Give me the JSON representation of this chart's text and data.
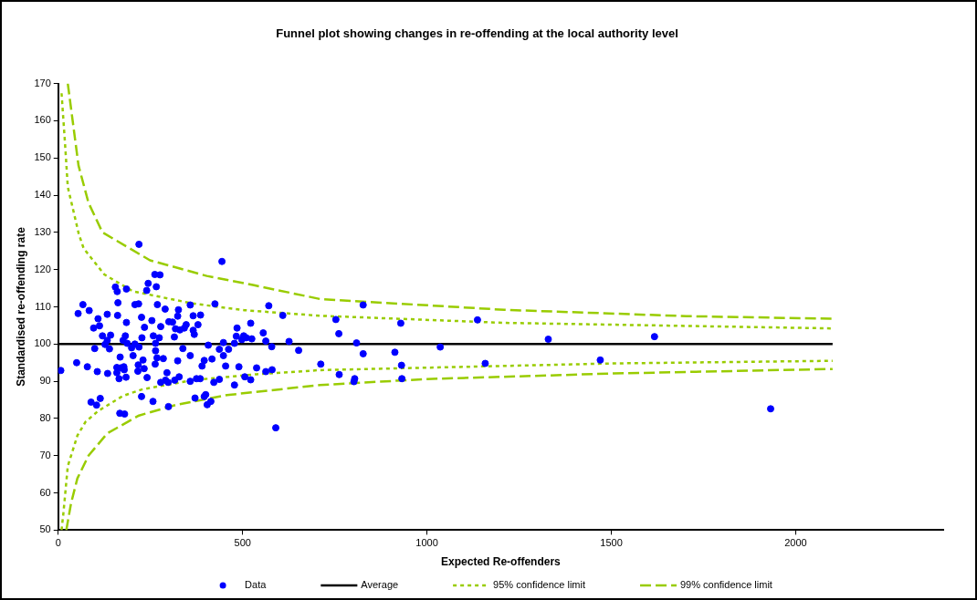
{
  "chart_data": {
    "type": "scatter",
    "title": "Funnel plot showing changes in re-offending at the local authority level",
    "xlabel": "Expected Re-offenders",
    "ylabel": "Standardised re-offending rate",
    "xlim": [
      0,
      2400
    ],
    "xticks": [
      0,
      500,
      1000,
      1500,
      2000
    ],
    "ylim": [
      50,
      170
    ],
    "yticks": [
      50,
      60,
      70,
      80,
      90,
      100,
      110,
      120,
      130,
      140,
      150,
      160,
      170
    ],
    "grid": false,
    "legend": "bottom",
    "series": [
      {
        "name": "Data",
        "marker": "circle",
        "color": "#0000ff",
        "x": [
          7,
          219,
          444,
          262,
          276,
          244,
          266,
          240,
          155,
          160,
          185,
          162,
          67,
          54,
          84,
          108,
          96,
          112,
          133,
          161,
          185,
          208,
          218,
          226,
          234,
          254,
          269,
          290,
          278,
          300,
          310,
          326,
          324,
          358,
          366,
          386,
          379,
          425,
          318,
          330,
          342,
          347,
          366,
          369,
          315,
          485,
          483,
          120,
          142,
          133,
          127,
          139,
          99,
          182,
          176,
          187,
          199,
          208,
          219,
          227,
          258,
          274,
          264,
          264,
          203,
          168,
          268,
          285,
          338,
          358,
          324,
          407,
          437,
          448,
          462,
          448,
          478,
          454,
          490,
          417,
          396,
          390,
          358,
          375,
          385,
          422,
          437,
          478,
          50,
          79,
          106,
          134,
          159,
          169,
          178,
          179,
          159,
          165,
          184,
          217,
          230,
          216,
          233,
          241,
          263,
          295,
          278,
          291,
          298,
          316,
          328,
          89,
          104,
          114,
          226,
          257,
          299,
          371,
          396,
          400,
          404,
          414,
          167,
          180,
          571,
          609,
          522,
          503,
          510,
          525,
          498,
          556,
          563,
          579,
          626,
          652,
          538,
          563,
          580,
          506,
          522,
          590,
          712,
          753,
          761,
          809,
          827,
          762,
          804,
          802,
          827,
          929,
          913,
          931,
          932,
          1137,
          1036,
          1329,
          1617,
          1158,
          1470,
          1932
        ],
        "values": [
          92.9,
          126.8,
          122.2,
          118.7,
          118.6,
          116.3,
          115.4,
          114.4,
          115.3,
          114.1,
          114.8,
          111.1,
          110.6,
          108.2,
          109.0,
          106.8,
          104.3,
          104.9,
          108.0,
          107.7,
          105.8,
          110.6,
          110.8,
          107.2,
          104.5,
          106.3,
          110.6,
          109.4,
          104.7,
          106.0,
          105.9,
          109.2,
          107.5,
          110.5,
          107.6,
          107.8,
          105.2,
          110.8,
          104.1,
          103.8,
          104.3,
          105.2,
          103.7,
          102.6,
          101.9,
          104.3,
          102.1,
          102.2,
          102.4,
          101.0,
          99.9,
          98.7,
          98.8,
          102.2,
          101.0,
          100.2,
          99.0,
          100.0,
          99.2,
          101.7,
          102.2,
          101.7,
          100.2,
          98.2,
          96.9,
          96.5,
          96.3,
          96.1,
          98.8,
          96.9,
          95.5,
          99.7,
          98.6,
          96.9,
          98.6,
          100.4,
          100.2,
          94.1,
          93.9,
          96.0,
          95.6,
          94.1,
          90.0,
          90.7,
          90.7,
          89.7,
          90.5,
          89.0,
          95.0,
          93.9,
          92.6,
          92.1,
          93.7,
          93.6,
          93.9,
          93.1,
          92.3,
          90.7,
          91.1,
          94.4,
          95.7,
          92.7,
          93.4,
          91.0,
          94.6,
          92.3,
          89.7,
          90.3,
          89.7,
          90.3,
          91.2,
          84.4,
          83.6,
          85.4,
          85.9,
          84.6,
          83.2,
          85.5,
          85.9,
          86.4,
          83.7,
          84.6,
          81.4,
          81.2,
          110.3,
          107.7,
          105.6,
          102.2,
          101.7,
          101.4,
          101.2,
          103.0,
          100.8,
          99.3,
          100.7,
          98.3,
          93.6,
          92.6,
          93.1,
          91.2,
          90.4,
          77.5,
          94.6,
          106.6,
          102.8,
          100.3,
          97.4,
          91.8,
          90.7,
          89.9,
          110.5,
          105.6,
          97.8,
          94.3,
          90.7,
          106.5,
          99.2,
          101.3,
          102.0,
          94.8,
          95.7,
          82.6
        ]
      },
      {
        "name": "Average",
        "type": "line",
        "marker": "none",
        "line_style": "solid",
        "color": "#000000",
        "x": [
          0,
          2100
        ],
        "values": [
          100,
          100
        ]
      },
      {
        "name": "95% confidence limit",
        "type": "line",
        "marker": "none",
        "line_style": "dotted",
        "color": "#99cc00",
        "x": [
          9,
          18,
          26,
          56,
          69,
          125,
          202,
          364,
          505,
          710,
          1210,
          2100
        ],
        "values": [
          167.4,
          154.6,
          142.2,
          129.5,
          125.7,
          118.7,
          114.2,
          110.9,
          109.1,
          107.6,
          105.7,
          104.2
        ]
      },
      {
        "type": "line",
        "marker": "none",
        "line_style": "dotted",
        "color": "#99cc00",
        "x": [
          9,
          14,
          26,
          52,
          74,
          108,
          176,
          227,
          364,
          538,
          710,
          1507,
          2100
        ],
        "values": [
          50,
          54.5,
          67.2,
          75.4,
          79.1,
          82.0,
          86.1,
          87.8,
          90.3,
          91.9,
          93.0,
          94.8,
          95.5
        ]
      },
      {
        "name": "99% confidence limit",
        "type": "line",
        "marker": "none",
        "line_style": "dashed",
        "color": "#99cc00",
        "x": [
          26,
          55,
          82,
          120,
          249,
          403,
          531,
          710,
          1210,
          1704,
          2100
        ],
        "values": [
          170,
          148,
          138,
          130,
          122.5,
          118.3,
          115.8,
          112.1,
          109.2,
          107.5,
          106.8
        ]
      },
      {
        "type": "line",
        "marker": "none",
        "line_style": "dashed",
        "color": "#99cc00",
        "x": [
          22,
          35,
          52,
          82,
          133,
          219,
          321,
          458,
          710,
          1000,
          1507,
          2100
        ],
        "values": [
          50,
          57.3,
          63.9,
          70,
          76,
          80.8,
          83.7,
          86.3,
          89,
          90.6,
          92.1,
          93.3
        ]
      }
    ]
  }
}
